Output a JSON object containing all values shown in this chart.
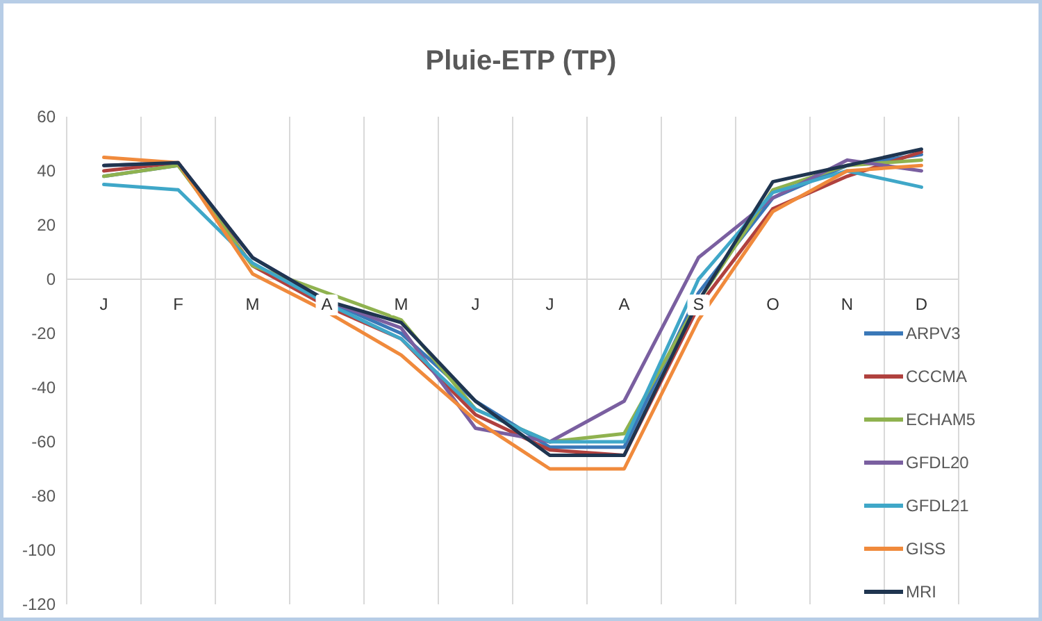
{
  "chart_data": {
    "type": "line",
    "title": "Pluie-ETP (TP)",
    "categories": [
      "J",
      "F",
      "M",
      "A",
      "M",
      "J",
      "J",
      "A",
      "S",
      "O",
      "N",
      "D"
    ],
    "series": [
      {
        "name": "ARPV3",
        "color": "#3a78b8",
        "values": [
          38,
          42,
          8,
          -8,
          -20,
          -45,
          -62,
          -62,
          -5,
          30,
          42,
          46
        ]
      },
      {
        "name": "CCCMA",
        "color": "#b0413e",
        "values": [
          40,
          43,
          5,
          -10,
          -22,
          -50,
          -63,
          -65,
          -10,
          26,
          38,
          47
        ]
      },
      {
        "name": "ECHAM5",
        "color": "#8fb24f",
        "values": [
          38,
          42,
          5,
          -5,
          -15,
          -48,
          -60,
          -57,
          -8,
          33,
          42,
          44
        ]
      },
      {
        "name": "GFDL20",
        "color": "#7a5fa0",
        "values": [
          42,
          43,
          8,
          -8,
          -18,
          -55,
          -60,
          -45,
          8,
          30,
          44,
          40
        ]
      },
      {
        "name": "GFDL21",
        "color": "#3fa7c8",
        "values": [
          35,
          33,
          6,
          -9,
          -22,
          -48,
          -60,
          -60,
          0,
          32,
          40,
          34
        ]
      },
      {
        "name": "GISS",
        "color": "#f08a3c",
        "values": [
          45,
          43,
          2,
          -12,
          -28,
          -52,
          -70,
          -70,
          -15,
          25,
          40,
          42
        ]
      },
      {
        "name": "MRI",
        "color": "#1f3550",
        "values": [
          42,
          43,
          8,
          -8,
          -16,
          -45,
          -65,
          -65,
          -8,
          36,
          42,
          48
        ]
      }
    ],
    "ylim": [
      -120,
      60
    ],
    "yticks": [
      -120,
      -100,
      -80,
      -60,
      -40,
      -20,
      0,
      20,
      40,
      60
    ],
    "grid": "x",
    "legend": "right",
    "line_style": "solid"
  }
}
